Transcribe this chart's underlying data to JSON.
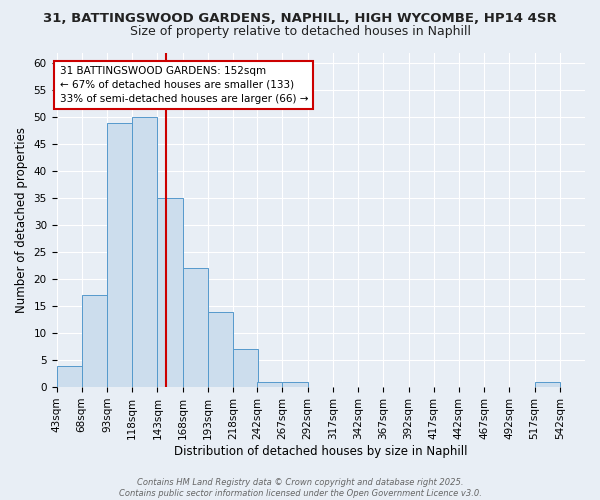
{
  "title_line1": "31, BATTINGSWOOD GARDENS, NAPHILL, HIGH WYCOMBE, HP14 4SR",
  "title_line2": "Size of property relative to detached houses in Naphill",
  "xlabel": "Distribution of detached houses by size in Naphill",
  "ylabel": "Number of detached properties",
  "bin_starts": [
    43,
    68,
    93,
    118,
    143,
    168,
    193,
    218,
    242,
    267,
    292,
    317,
    342,
    367,
    392,
    417,
    442,
    467,
    492,
    517,
    542
  ],
  "bin_width": 25,
  "bar_heights": [
    4,
    17,
    49,
    50,
    35,
    22,
    14,
    7,
    1,
    1,
    0,
    0,
    0,
    0,
    0,
    0,
    0,
    0,
    0,
    1,
    0
  ],
  "bar_color": "#ccdded",
  "bar_edge_color": "#5599cc",
  "property_size": 152,
  "vline_color": "#cc0000",
  "annotation_text": "31 BATTINGSWOOD GARDENS: 152sqm\n← 67% of detached houses are smaller (133)\n33% of semi-detached houses are larger (66) →",
  "annotation_box_color": "#ffffff",
  "annotation_box_edge": "#cc0000",
  "ylim": [
    0,
    62
  ],
  "yticks": [
    0,
    5,
    10,
    15,
    20,
    25,
    30,
    35,
    40,
    45,
    50,
    55,
    60
  ],
  "background_color": "#e8eef5",
  "grid_color": "#ffffff",
  "footer_text": "Contains HM Land Registry data © Crown copyright and database right 2025.\nContains public sector information licensed under the Open Government Licence v3.0.",
  "title_fontsize": 9.5,
  "subtitle_fontsize": 9,
  "tick_fontsize": 7.5,
  "label_fontsize": 8.5
}
